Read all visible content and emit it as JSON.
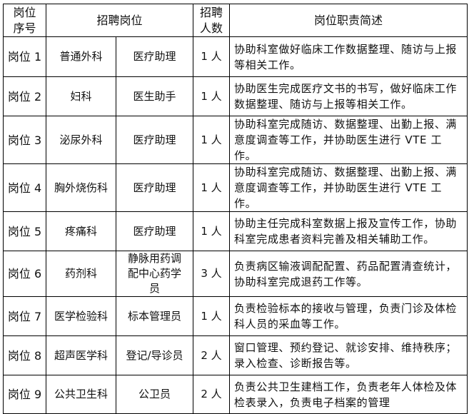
{
  "header": {
    "seq": "岗位序号",
    "position": "招聘岗位",
    "count": "招聘人数",
    "duty": "岗位职责简述"
  },
  "rows": [
    {
      "seq": "岗位 1",
      "dept": "普通外科",
      "role": "医疗助理",
      "count": "1 人",
      "duty": "协助科室做好临床工作数据整理、随访与上报等相关工作。"
    },
    {
      "seq": "岗位 2",
      "dept": "妇科",
      "role": "医生助手",
      "count": "1 人",
      "duty": "协助医生完成医疗文书的书写，做好临床工作数据整理、随访与上报等相关工作。"
    },
    {
      "seq": "岗位 3",
      "dept": "泌尿外科",
      "role": "医疗助理",
      "count": "1 人",
      "duty": "协助科室完成随访、数据整理、出勤上报、满意度调查等工作，并协助医生进行 VTE 工作。"
    },
    {
      "seq": "岗位 4",
      "dept": "胸外烧伤科",
      "role": "医疗助理",
      "count": "1 人",
      "duty": "协助科室完成随访、数据整理、出勤上报、满意度调查等工作，并协助医生进行 VTE 工作。"
    },
    {
      "seq": "岗位 5",
      "dept": "疼痛科",
      "role": "医疗助理",
      "count": "1 人",
      "duty": "协助主任完成科室数据上报及宣传工作，协助科室完成患者资料完善及相关辅助工作。"
    },
    {
      "seq": "岗位 6",
      "dept": "药剂科",
      "role": "静脉用药调配中心药学员",
      "count": "3 人",
      "duty": "负责病区输液调配配置、药品配置清查统计，协助科室完成退药工作等。"
    },
    {
      "seq": "岗位 7",
      "dept": "医学检验科",
      "role": "标本管理员",
      "count": "1 人",
      "duty": "负责检验标本的接收与管理，负责门诊及体检科人员的采血等工作。"
    },
    {
      "seq": "岗位 8",
      "dept": "超声医学科",
      "role": "登记/导诊员",
      "count": "2 人",
      "duty": "窗口管理、预约登记、就诊安排、维持秩序；录入检查、诊断报告等。"
    },
    {
      "seq": "岗位 9",
      "dept": "公共卫生科",
      "role": "公卫员",
      "count": "2 人",
      "duty": "负责公共卫生建档工作，负责老年人体检及体检表录入，负责电子档案的管理"
    }
  ]
}
